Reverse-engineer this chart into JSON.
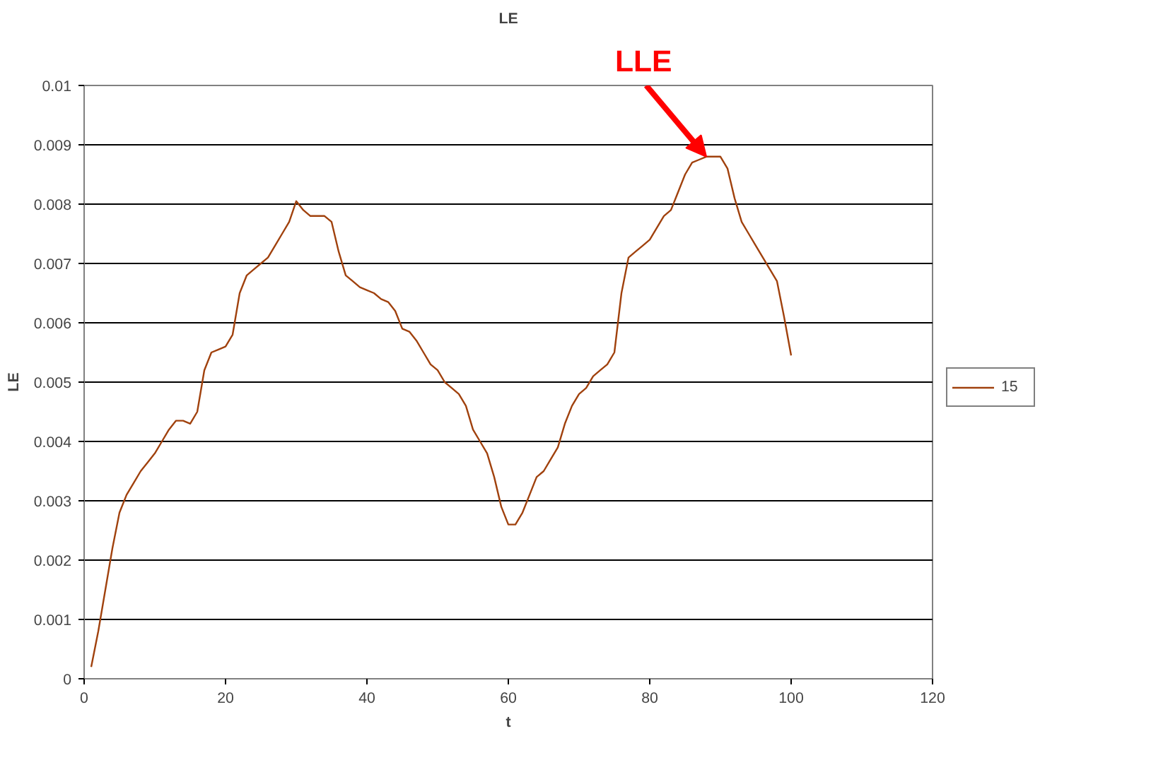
{
  "chart_data": {
    "type": "line",
    "title": "LE",
    "xlabel": "t",
    "ylabel": "LE",
    "x": [
      1,
      2,
      3,
      4,
      5,
      6,
      7,
      8,
      9,
      10,
      11,
      12,
      13,
      14,
      15,
      16,
      17,
      18,
      19,
      20,
      21,
      22,
      23,
      24,
      25,
      26,
      27,
      28,
      29,
      30,
      31,
      32,
      33,
      34,
      35,
      36,
      37,
      38,
      39,
      40,
      41,
      42,
      43,
      44,
      45,
      46,
      47,
      48,
      49,
      50,
      51,
      52,
      53,
      54,
      55,
      56,
      57,
      58,
      59,
      60,
      61,
      62,
      63,
      64,
      65,
      66,
      67,
      68,
      69,
      70,
      71,
      72,
      73,
      74,
      75,
      76,
      77,
      78,
      79,
      80,
      81,
      82,
      83,
      84,
      85,
      86,
      87,
      88,
      89,
      90,
      91,
      92,
      93,
      94,
      95,
      96,
      97,
      98,
      99,
      100
    ],
    "series": [
      {
        "name": "15",
        "color": "#a0410d",
        "values": [
          0.0002,
          0.0008,
          0.0015,
          0.0022,
          0.0028,
          0.0031,
          0.0033,
          0.0035,
          0.00365,
          0.0038,
          0.004,
          0.0042,
          0.00435,
          0.00435,
          0.0043,
          0.0045,
          0.0052,
          0.0055,
          0.00555,
          0.0056,
          0.0058,
          0.0065,
          0.0068,
          0.0069,
          0.007,
          0.0071,
          0.0073,
          0.0075,
          0.0077,
          0.00805,
          0.0079,
          0.0078,
          0.0078,
          0.0078,
          0.0077,
          0.0072,
          0.0068,
          0.0067,
          0.0066,
          0.00655,
          0.0065,
          0.0064,
          0.00635,
          0.0062,
          0.0059,
          0.00585,
          0.0057,
          0.0055,
          0.0053,
          0.0052,
          0.005,
          0.0049,
          0.0048,
          0.0046,
          0.0042,
          0.004,
          0.0038,
          0.0034,
          0.0029,
          0.0026,
          0.0026,
          0.0028,
          0.0031,
          0.0034,
          0.0035,
          0.0037,
          0.0039,
          0.0043,
          0.0046,
          0.0048,
          0.0049,
          0.0051,
          0.0052,
          0.0053,
          0.0055,
          0.0065,
          0.0071,
          0.0072,
          0.0073,
          0.0074,
          0.0076,
          0.0078,
          0.0079,
          0.0082,
          0.0085,
          0.0087,
          0.00875,
          0.0088,
          0.0088,
          0.0088,
          0.0086,
          0.0081,
          0.0077,
          0.0075,
          0.0073,
          0.0071,
          0.0069,
          0.0067,
          0.0061,
          0.00545
        ]
      }
    ],
    "xlim": [
      0,
      120
    ],
    "xticks": [
      0,
      20,
      40,
      60,
      80,
      100,
      120
    ],
    "ylim": [
      0,
      0.01
    ],
    "yticks": [
      {
        "value": 0,
        "label": "0"
      },
      {
        "value": 0.001,
        "label": "0.001"
      },
      {
        "value": 0.002,
        "label": "0.002"
      },
      {
        "value": 0.003,
        "label": "0.003"
      },
      {
        "value": 0.004,
        "label": "0.004"
      },
      {
        "value": 0.005,
        "label": "0.005"
      },
      {
        "value": 0.006,
        "label": "0.006"
      },
      {
        "value": 0.007,
        "label": "0.007"
      },
      {
        "value": 0.008,
        "label": "0.008"
      },
      {
        "value": 0.009,
        "label": "0.009"
      },
      {
        "value": 0.01,
        "label": "0.01"
      }
    ],
    "grid": "y",
    "legend": "right",
    "marker": "none",
    "line_style": "solid",
    "annotations": [
      {
        "text": "LLE",
        "x": 88,
        "y": 0.0088
      }
    ]
  }
}
